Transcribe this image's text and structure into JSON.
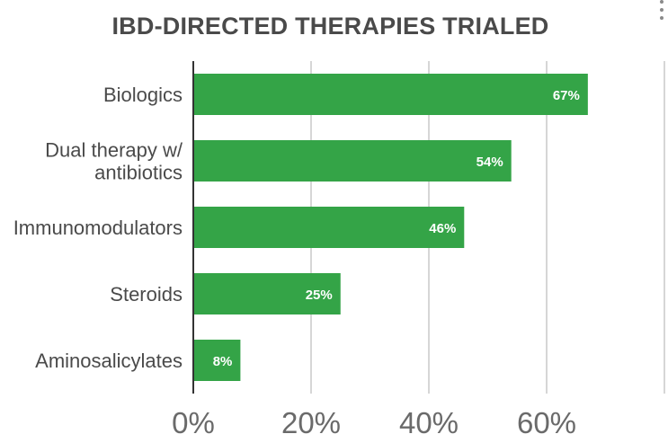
{
  "chart_data": {
    "type": "bar",
    "orientation": "horizontal",
    "title": "IBD-DIRECTED THERAPIES TRIALED",
    "categories": [
      [
        "Biologics"
      ],
      [
        "Dual therapy w/",
        "antibiotics"
      ],
      [
        "Immunomodulators"
      ],
      [
        "Steroids"
      ],
      [
        "Aminosalicylates"
      ]
    ],
    "values": [
      67,
      54,
      46,
      25,
      8
    ],
    "data_labels": [
      "67%",
      "54%",
      "46%",
      "25%",
      "8%"
    ],
    "xlim": [
      0,
      80
    ],
    "x_ticks": [
      0,
      20,
      40,
      60,
      80
    ],
    "x_tick_labels": [
      "0%",
      "20%",
      "40%",
      "60%",
      ""
    ],
    "xlabel": "",
    "ylabel": "",
    "grid": true,
    "legend": "none",
    "colors": {
      "bar": "#34a447",
      "grid": "#d6d6d6",
      "axis": "#333333",
      "text": "#4a4a4a",
      "label": "#ffffff"
    }
  },
  "menu": {
    "icon": "more-vert-icon"
  }
}
